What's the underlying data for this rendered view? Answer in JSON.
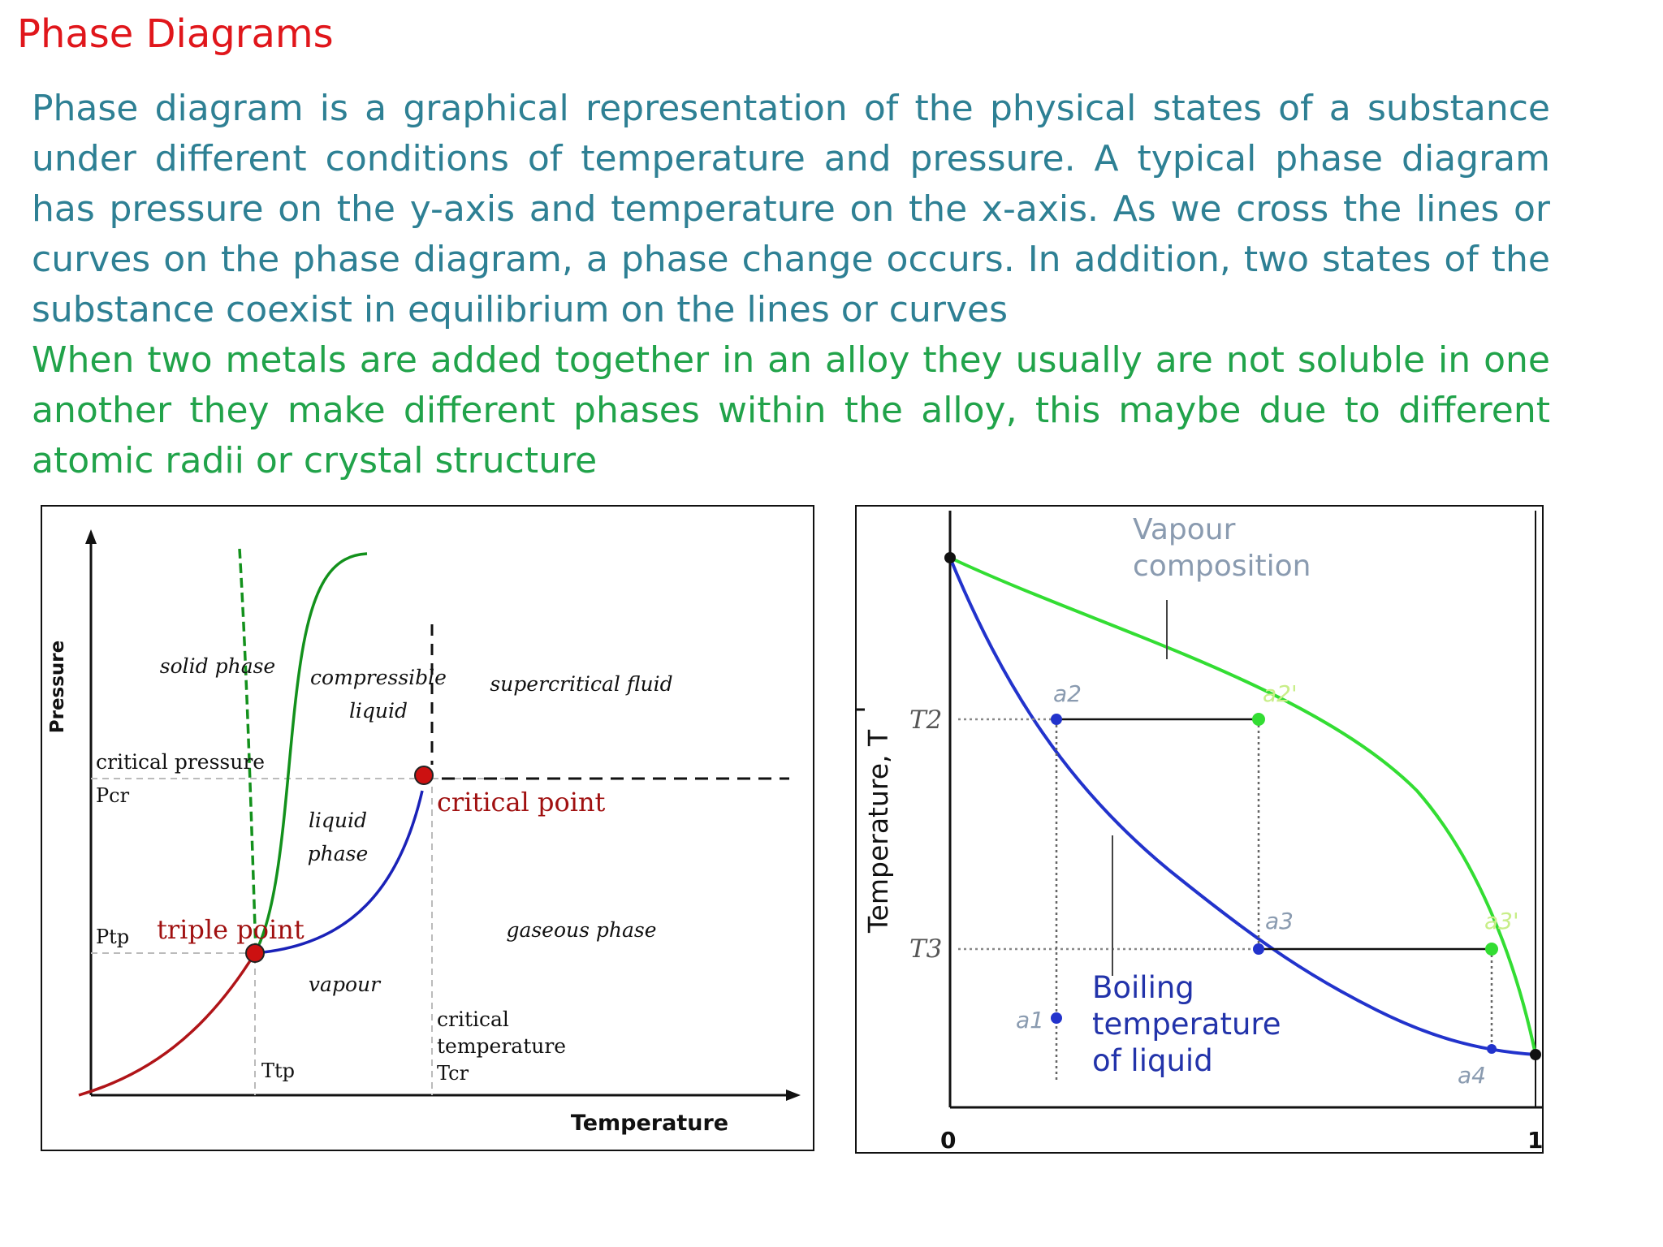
{
  "title": "Phase Diagrams",
  "paragraph1": "Phase diagram is a graphical representation of the physical states of a substance under different conditions of temperature and pressure. A typical phase diagram has pressure on the y-axis and temperature on the x-axis. As we cross the lines or curves on the phase diagram, a phase change occurs. In addition, two states of the substance coexist in equilibrium on the lines or curves",
  "paragraph2": "When two metals are added together in an alloy they usually are not soluble in one another they make different phases within the alloy, this maybe due to different atomic radii or crystal structure",
  "figure1": {
    "y_axis_label": "Pressure",
    "x_axis_label": "Temperature",
    "regions": {
      "solid": "solid phase",
      "compressible_liquid": [
        "compressible",
        "liquid"
      ],
      "supercritical": "supercritical fluid",
      "liquid": [
        "liquid",
        "phase"
      ],
      "gaseous": "gaseous phase",
      "vapour": "vapour"
    },
    "critical_pressure": "critical pressure",
    "p_cr": "Pcr",
    "p_tp": "Ptp",
    "triple_point": "triple point",
    "critical_point": "critical point",
    "critical_temperature": [
      "critical",
      "temperature"
    ],
    "t_cr": "Tcr",
    "t_tp": "Ttp",
    "colors": {
      "sublimation": "#b01418",
      "melting": "#13911c",
      "vaporization": "#1a22b8",
      "points": "#cc1111",
      "water_melting": "#13911c"
    }
  },
  "figure2": {
    "y_axis_label": "Temperature, T",
    "vapour_label": [
      "Vapour",
      "composition"
    ],
    "liquid_label": [
      "Boiling",
      "temperature",
      "of liquid"
    ],
    "t2": "T2",
    "t3": "T3",
    "x_min": "0",
    "x_max": "1",
    "points": {
      "a1": "a1",
      "a2": "a2",
      "a2p": "a2'",
      "a3": "a3",
      "a3p": "a3'",
      "a4": "a4"
    },
    "colors": {
      "vapour_curve": "#33dd33",
      "liquid_curve": "#2233cc"
    }
  }
}
